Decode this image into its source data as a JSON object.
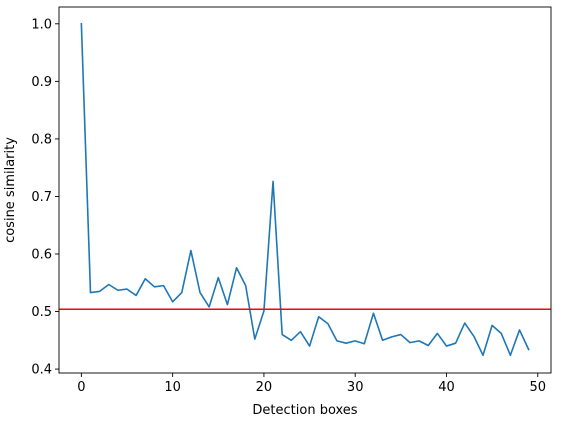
{
  "chart_data": {
    "type": "line",
    "title": "",
    "xlabel": "Detection boxes",
    "ylabel": "cosine similarity",
    "xlim": [
      -2.45,
      51.45
    ],
    "ylim": [
      0.3932,
      1.0292
    ],
    "grid": false,
    "x_ticks": [
      0,
      10,
      20,
      30,
      40,
      50
    ],
    "y_ticks": [
      0.4,
      0.5,
      0.6,
      0.7,
      0.8,
      0.9,
      1.0
    ],
    "x_tick_labels": [
      "0",
      "10",
      "20",
      "30",
      "40",
      "50"
    ],
    "y_tick_labels": [
      "0.4",
      "0.5",
      "0.6",
      "0.7",
      "0.8",
      "0.9",
      "1.0"
    ],
    "series": [
      {
        "color": "#1f77b4",
        "x": [
          0,
          1,
          2,
          3,
          4,
          5,
          6,
          7,
          8,
          9,
          10,
          11,
          12,
          13,
          14,
          15,
          16,
          17,
          18,
          19,
          20,
          21,
          22,
          23,
          24,
          25,
          26,
          27,
          28,
          29,
          30,
          31,
          32,
          33,
          34,
          35,
          36,
          37,
          38,
          39,
          40,
          41,
          42,
          43,
          44,
          45,
          46,
          47,
          48,
          49
        ],
        "values": [
          1.0,
          0.533,
          0.535,
          0.547,
          0.537,
          0.539,
          0.528,
          0.557,
          0.543,
          0.545,
          0.517,
          0.533,
          0.606,
          0.533,
          0.508,
          0.559,
          0.512,
          0.576,
          0.545,
          0.452,
          0.501,
          0.726,
          0.46,
          0.45,
          0.465,
          0.44,
          0.491,
          0.479,
          0.449,
          0.445,
          0.449,
          0.444,
          0.497,
          0.45,
          0.456,
          0.46,
          0.446,
          0.449,
          0.441,
          0.462,
          0.44,
          0.445,
          0.48,
          0.457,
          0.424,
          0.476,
          0.462,
          0.424,
          0.468,
          0.434
        ]
      }
    ],
    "hlines": [
      {
        "y": 0.504,
        "color": "#ff0000"
      }
    ]
  }
}
